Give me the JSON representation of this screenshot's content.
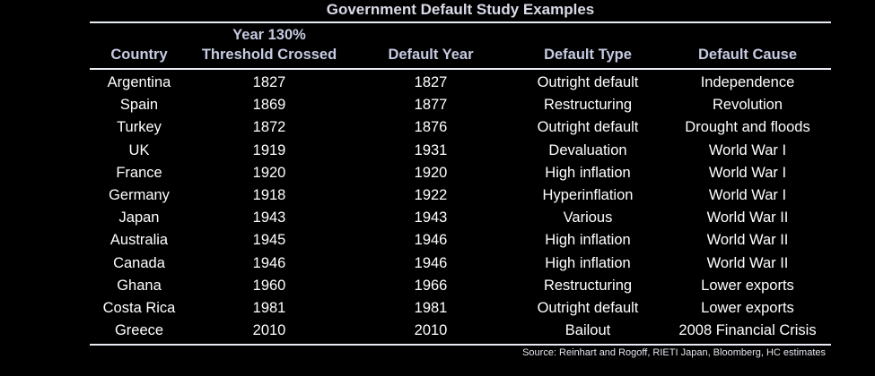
{
  "title": "Government Default Study Examples",
  "columns": {
    "country": "Country",
    "threshold_line1": "Year 130%",
    "threshold_line2": "Threshold Crossed",
    "default_year": "Default Year",
    "default_type": "Default Type",
    "default_cause": "Default Cause"
  },
  "rows": [
    {
      "country": "Argentina",
      "threshold": "1827",
      "year": "1827",
      "type": "Outright default",
      "cause": "Independence"
    },
    {
      "country": "Spain",
      "threshold": "1869",
      "year": "1877",
      "type": "Restructuring",
      "cause": "Revolution"
    },
    {
      "country": "Turkey",
      "threshold": "1872",
      "year": "1876",
      "type": "Outright default",
      "cause": "Drought and floods"
    },
    {
      "country": "UK",
      "threshold": "1919",
      "year": "1931",
      "type": "Devaluation",
      "cause": "World War I"
    },
    {
      "country": "France",
      "threshold": "1920",
      "year": "1920",
      "type": "High inflation",
      "cause": "World War I"
    },
    {
      "country": "Germany",
      "threshold": "1918",
      "year": "1922",
      "type": "Hyperinflation",
      "cause": "World War I"
    },
    {
      "country": "Japan",
      "threshold": "1943",
      "year": "1943",
      "type": "Various",
      "cause": "World War II"
    },
    {
      "country": "Australia",
      "threshold": "1945",
      "year": "1946",
      "type": "High inflation",
      "cause": "World War II"
    },
    {
      "country": "Canada",
      "threshold": "1946",
      "year": "1946",
      "type": "High inflation",
      "cause": "World War II"
    },
    {
      "country": "Ghana",
      "threshold": "1960",
      "year": "1966",
      "type": "Restructuring",
      "cause": "Lower exports"
    },
    {
      "country": "Costa Rica",
      "threshold": "1981",
      "year": "1981",
      "type": "Outright default",
      "cause": "Lower exports"
    },
    {
      "country": "Greece",
      "threshold": "2010",
      "year": "2010",
      "type": "Bailout",
      "cause": "2008 Financial Crisis"
    }
  ],
  "source": "Source: Reinhart and Rogoff,  RIETI Japan, Bloomberg, HC estimates",
  "colors": {
    "background": "#000000",
    "header_text": "#c6cbe2",
    "title_text": "#d9dbe8",
    "body_text": "#ffffff",
    "rule": "#e9ebf4"
  }
}
